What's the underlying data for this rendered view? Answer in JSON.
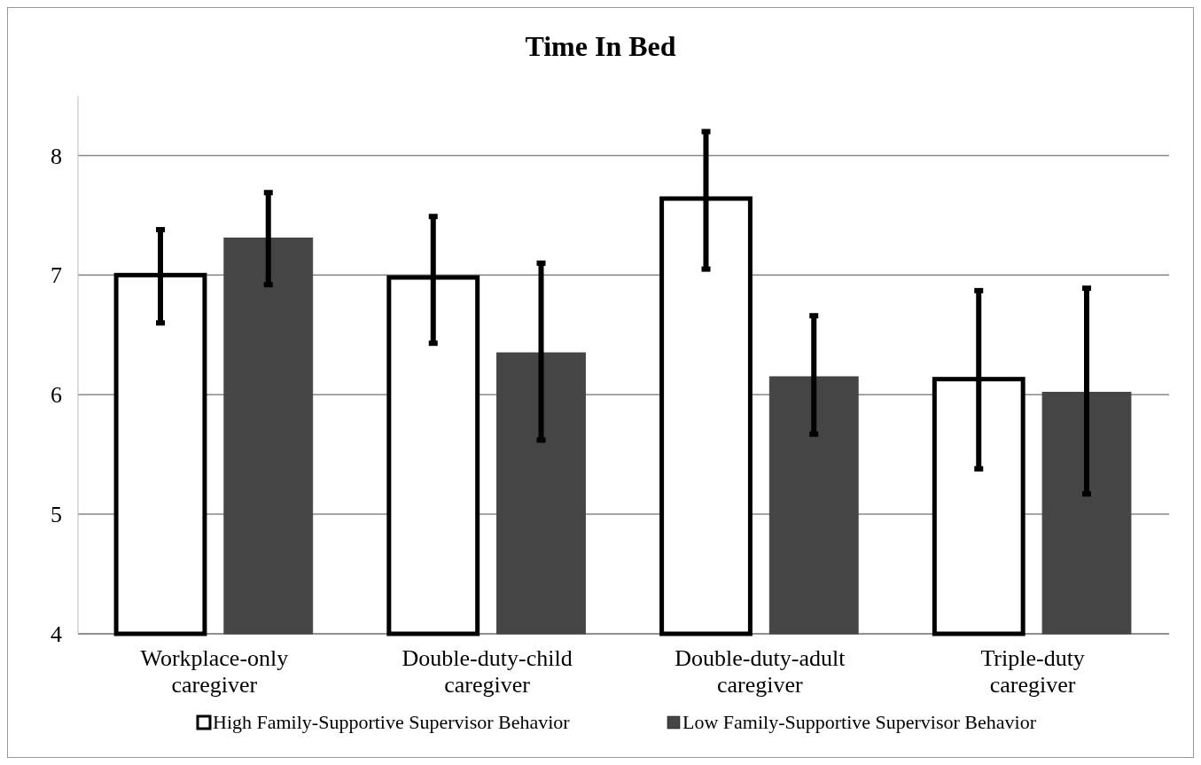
{
  "chart_data": {
    "type": "bar",
    "title": "Time In Bed",
    "categories": [
      "Workplace-only caregiver",
      "Double-duty-child caregiver",
      "Double-duty-adult caregiver",
      "Triple-duty caregiver"
    ],
    "series": [
      {
        "name": "High Family-Supportive Supervisor Behavior",
        "color": "#ffffff",
        "values": [
          7.0,
          6.98,
          7.64,
          6.13
        ],
        "errors": [
          [
            6.6,
            7.38
          ],
          [
            6.43,
            7.49
          ],
          [
            7.05,
            8.2
          ],
          [
            5.38,
            6.87
          ]
        ]
      },
      {
        "name": "Low Family-Supportive Supervisor Behavior",
        "color": "#454545",
        "values": [
          7.31,
          6.35,
          6.15,
          6.02
        ],
        "errors": [
          [
            6.92,
            7.69
          ],
          [
            5.62,
            7.1
          ],
          [
            5.67,
            6.66
          ],
          [
            5.17,
            6.89
          ]
        ]
      }
    ],
    "ylim": [
      4,
      8.5
    ],
    "yticks": [
      4,
      5,
      6,
      7,
      8
    ],
    "grid": "y",
    "legend": "bottom"
  }
}
